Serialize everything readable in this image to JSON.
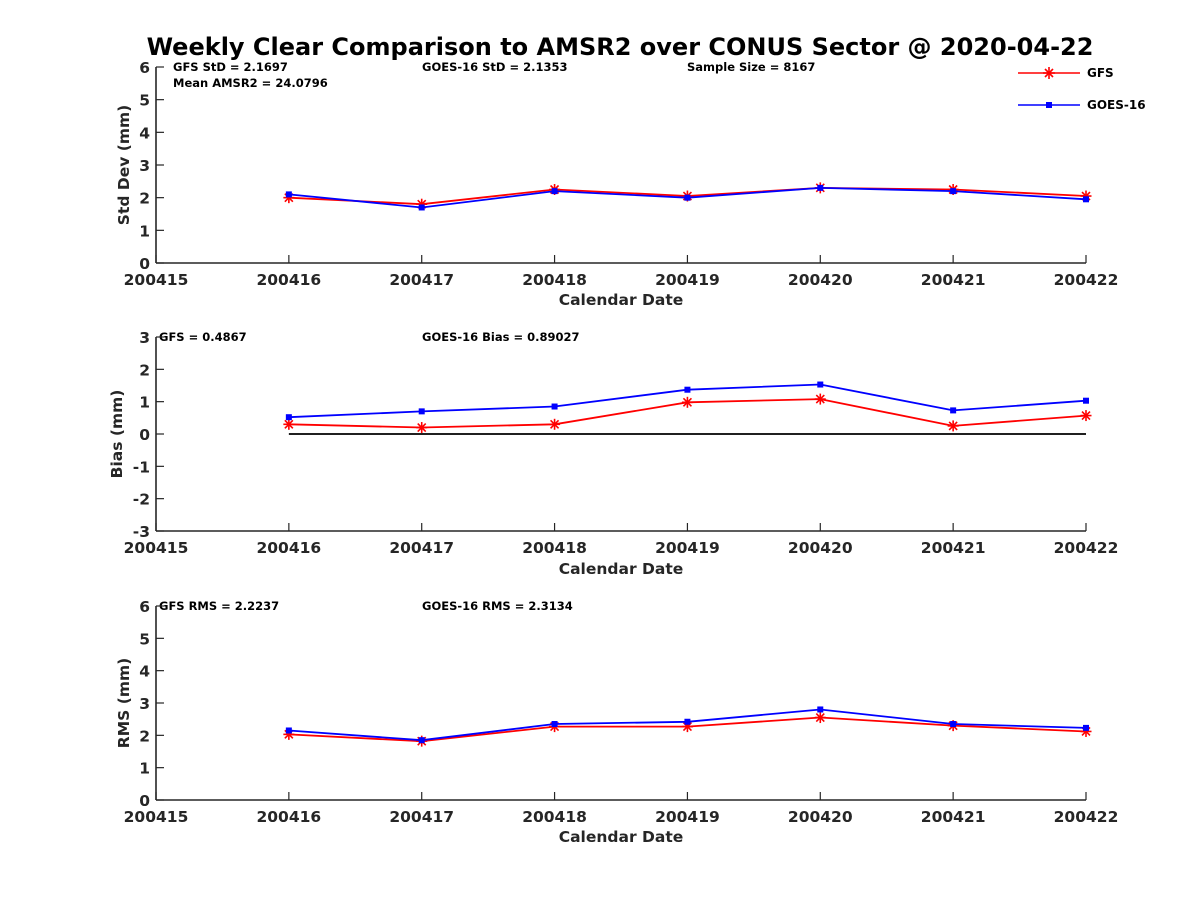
{
  "chart_data": {
    "title": "Weekly Clear Comparison to AMSR2 over CONUS Sector @ 2020-04-22",
    "legend": {
      "placement": "top-right",
      "entries": [
        {
          "name": "GFS",
          "color": "#ff0000",
          "marker": "asterisk"
        },
        {
          "name": "GOES-16",
          "color": "#0000ff",
          "marker": "square"
        }
      ]
    },
    "panels": [
      {
        "type": "line",
        "id": "std",
        "xlabel": "Calendar Date",
        "ylabel": "Std Dev (mm)",
        "xlim": [
          200415,
          200422
        ],
        "xticks": [
          "200415",
          "200416",
          "200417",
          "200418",
          "200419",
          "200420",
          "200421",
          "200422"
        ],
        "ylim": [
          0,
          6
        ],
        "yticks": [
          "0",
          "1",
          "2",
          "3",
          "4",
          "5",
          "6"
        ],
        "zero_line": false,
        "annotations": [
          {
            "text": "GFS StD = 2.1697"
          },
          {
            "text": "GOES-16 StD = 2.1353"
          },
          {
            "text": "Sample Size = 8167"
          },
          {
            "text": "Mean AMSR2 = 24.0796"
          }
        ],
        "x": [
          200416,
          200417,
          200418,
          200419,
          200420,
          200421,
          200422
        ],
        "series": [
          {
            "name": "GFS",
            "color": "#ff0000",
            "marker": "asterisk",
            "values": [
              2.0,
              1.8,
              2.25,
              2.05,
              2.3,
              2.25,
              2.05
            ]
          },
          {
            "name": "GOES-16",
            "color": "#0000ff",
            "marker": "square",
            "values": [
              2.1,
              1.7,
              2.2,
              2.0,
              2.3,
              2.2,
              1.95
            ]
          }
        ]
      },
      {
        "type": "line",
        "id": "bias",
        "xlabel": "Calendar Date",
        "ylabel": "Bias (mm)",
        "xlim": [
          200415,
          200422
        ],
        "xticks": [
          "200415",
          "200416",
          "200417",
          "200418",
          "200419",
          "200420",
          "200421",
          "200422"
        ],
        "ylim": [
          -3,
          3
        ],
        "yticks": [
          "-3",
          "-2",
          "-1",
          "0",
          "1",
          "2",
          "3"
        ],
        "zero_line": true,
        "annotations": [
          {
            "text": "GFS = 0.4867"
          },
          {
            "text": "GOES-16 Bias  = 0.89027"
          }
        ],
        "x": [
          200416,
          200417,
          200418,
          200419,
          200420,
          200421,
          200422
        ],
        "series": [
          {
            "name": "GFS",
            "color": "#ff0000",
            "marker": "asterisk",
            "values": [
              0.3,
              0.2,
              0.3,
              0.98,
              1.08,
              0.25,
              0.57
            ]
          },
          {
            "name": "GOES-16",
            "color": "#0000ff",
            "marker": "square",
            "values": [
              0.52,
              0.7,
              0.85,
              1.37,
              1.53,
              0.73,
              1.03
            ]
          }
        ]
      },
      {
        "type": "line",
        "id": "rms",
        "xlabel": "Calendar Date",
        "ylabel": "RMS (mm)",
        "xlim": [
          200415,
          200422
        ],
        "xticks": [
          "200415",
          "200416",
          "200417",
          "200418",
          "200419",
          "200420",
          "200421",
          "200422"
        ],
        "ylim": [
          0,
          6
        ],
        "yticks": [
          "0",
          "1",
          "2",
          "3",
          "4",
          "5",
          "6"
        ],
        "zero_line": false,
        "annotations": [
          {
            "text": "GFS RMS = 2.2237"
          },
          {
            "text": "GOES-16 RMS = 2.3134"
          }
        ],
        "x": [
          200416,
          200417,
          200418,
          200419,
          200420,
          200421,
          200422
        ],
        "series": [
          {
            "name": "GFS",
            "color": "#ff0000",
            "marker": "asterisk",
            "values": [
              2.03,
              1.82,
              2.27,
              2.27,
              2.55,
              2.3,
              2.12
            ]
          },
          {
            "name": "GOES-16",
            "color": "#0000ff",
            "marker": "square",
            "values": [
              2.15,
              1.85,
              2.35,
              2.42,
              2.8,
              2.35,
              2.23
            ]
          }
        ]
      }
    ]
  }
}
